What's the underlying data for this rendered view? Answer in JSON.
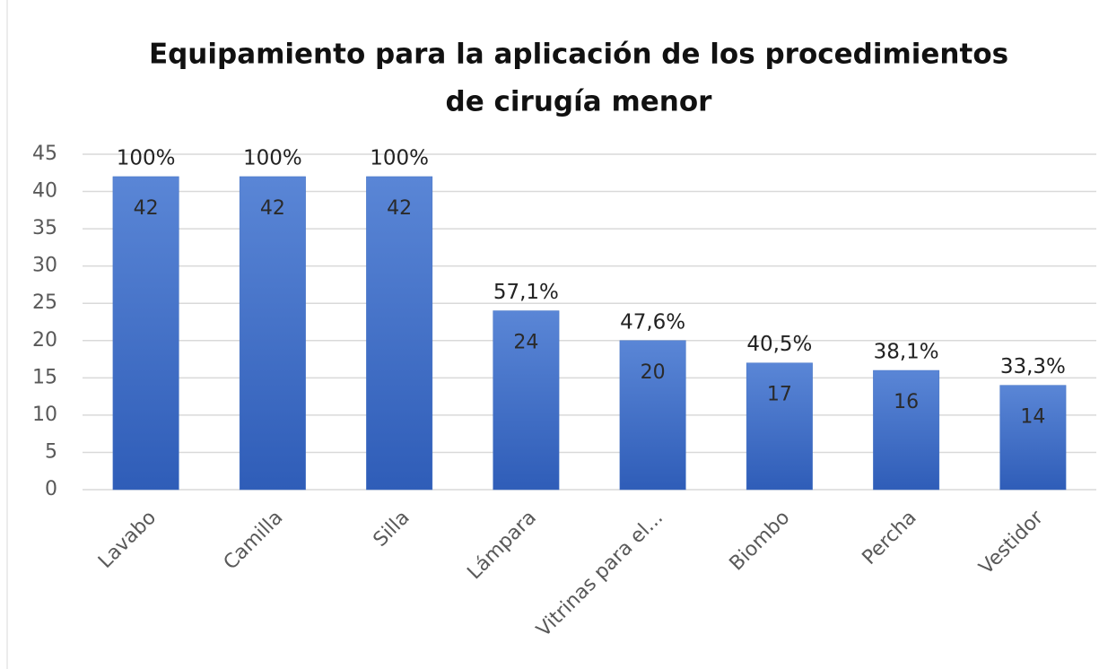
{
  "chart_data": {
    "type": "bar",
    "title": [
      "Equipamiento para la aplicación de los procedimientos",
      "de cirugía menor"
    ],
    "categories": [
      "Lavabo",
      "Camilla",
      "Silla",
      "Lámpara",
      "Vitrinas para el...",
      "Biombo",
      "Percha",
      "Vestidor"
    ],
    "values": [
      42,
      42,
      42,
      24,
      20,
      17,
      16,
      14
    ],
    "percent_labels": [
      "100%",
      "100%",
      "100%",
      "57,1%",
      "47,6%",
      "40,5%",
      "38,1%",
      "33,3%"
    ],
    "color": "#4472c4",
    "ylim": [
      0,
      45
    ],
    "yticks": [
      0,
      5,
      10,
      15,
      20,
      25,
      30,
      35,
      40,
      45
    ],
    "grid": true
  }
}
